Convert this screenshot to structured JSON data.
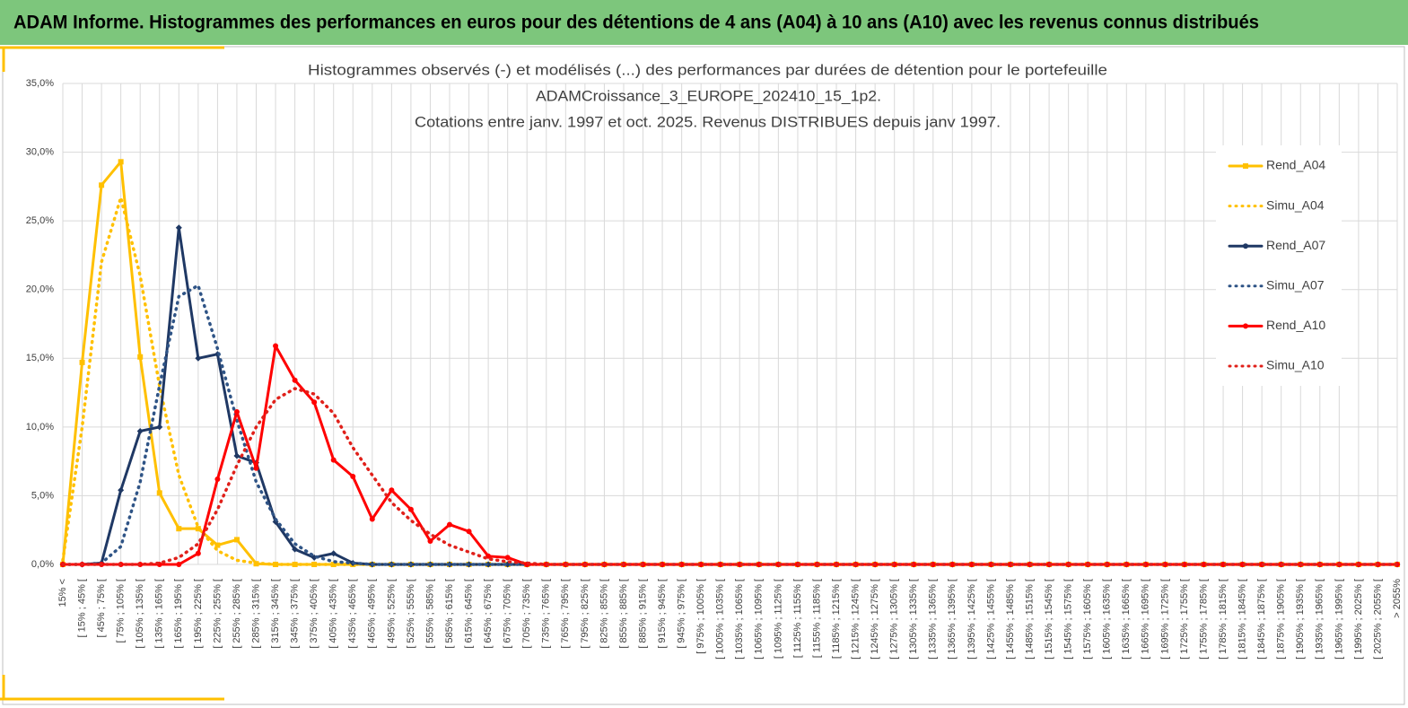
{
  "header": {
    "title": "ADAM Informe. Histogrammes des performances en euros pour des détentions de 4 ans (A04) à 10 ans (A10) avec les revenus connus distribués"
  },
  "chart_data": {
    "type": "line",
    "title": [
      "Histogrammes observés (-) et modélisés (...) des performances  par durées de détention pour le portefeuille",
      "ADAMCroissance_3_EUROPE_202410_15_1p2.",
      "Cotations entre janv. 1997 et oct. 2025. Revenus DISTRIBUES depuis janv 1997."
    ],
    "categories": [
      "15% <",
      "[ 15% ; 45% [",
      "[ 45% ; 75% [",
      "[ 75% ; 105% [",
      "[ 105% ; 135% [",
      "[ 135% ; 165% [",
      "[ 165% ; 195% [",
      "[ 195% ; 225% [",
      "[ 225% ; 255% [",
      "[ 255% ; 285% [",
      "[ 285% ; 315% [",
      "[ 315% ; 345% [",
      "[ 345% ; 375% [",
      "[ 375% ; 405% [",
      "[ 405% ; 435% [",
      "[ 435% ; 465% [",
      "[ 465% ; 495% [",
      "[ 495% ; 525% [",
      "[ 525% ; 555% [",
      "[ 555% ; 585% [",
      "[ 585% ; 615% [",
      "[ 615% ; 645% [",
      "[ 645% ; 675% [",
      "[ 675% ; 705% [",
      "[ 705% ; 735% [",
      "[ 735% ; 765% [",
      "[ 765% ; 795% [",
      "[ 795% ; 825% [",
      "[ 825% ; 855% [",
      "[ 855% ; 885% [",
      "[ 885% ; 915% [",
      "[ 915% ; 945% [",
      "[ 945% ; 975% [",
      "[ 975% ; 1005% [",
      "[ 1005% ; 1035% [",
      "[ 1035% ; 1065% [",
      "[ 1065% ; 1095% [",
      "[ 1095% ; 1125% [",
      "[ 1125% ; 1155% [",
      "[ 1155% ; 1185% [",
      "[ 1185% ; 1215% [",
      "[ 1215% ; 1245% [",
      "[ 1245% ; 1275% [",
      "[ 1275% ; 1305% [",
      "[ 1305% ; 1335% [",
      "[ 1335% ; 1365% [",
      "[ 1365% ; 1395% [",
      "[ 1395% ; 1425% [",
      "[ 1425% ; 1455% [",
      "[ 1455% ; 1485% [",
      "[ 1485% ; 1515% [",
      "[ 1515% ; 1545% [",
      "[ 1545% ; 1575% [",
      "[ 1575% ; 1605% [",
      "[ 1605% ; 1635% [",
      "[ 1635% ; 1665% [",
      "[ 1665% ; 1695% [",
      "[ 1695% ; 1725% [",
      "[ 1725% ; 1755% [",
      "[ 1755% ; 1785% [",
      "[ 1785% ; 1815% [",
      "[ 1815% ; 1845% [",
      "[ 1845% ; 1875% [",
      "[ 1875% ; 1905% [",
      "[ 1905% ; 1935% [",
      "[ 1935% ; 1965% [",
      "[ 1965% ; 1995% [",
      "[ 1995% ; 2025% [",
      "[ 2025% ; 2055% [",
      "> 2055%"
    ],
    "series": [
      {
        "name": "Rend_A04",
        "color": "#ffc000",
        "line_style": "solid",
        "marker": "square",
        "values": [
          0,
          14.7,
          27.6,
          29.3,
          15.1,
          5.2,
          2.6,
          2.6,
          1.4,
          1.8,
          0.05,
          0,
          0,
          0,
          0,
          0,
          0,
          0,
          0,
          0,
          0,
          0,
          0,
          0,
          0,
          0,
          0,
          0,
          0,
          0,
          0,
          0,
          0,
          0,
          0,
          0,
          0,
          0,
          0,
          0,
          0,
          0,
          0,
          0,
          0,
          0,
          0,
          0,
          0,
          0,
          0,
          0,
          0,
          0,
          0,
          0,
          0,
          0,
          0,
          0,
          0,
          0,
          0,
          0,
          0,
          0,
          0,
          0,
          0,
          0
        ]
      },
      {
        "name": "Simu_A04",
        "color": "#ffc000",
        "line_style": "dotted",
        "values": [
          0.3,
          10,
          22,
          26.7,
          21,
          13,
          6.5,
          2.7,
          1,
          0.3,
          0.1,
          0,
          0,
          0,
          0,
          0,
          0,
          0,
          0,
          0,
          0,
          0,
          0,
          0,
          0,
          0,
          0,
          0,
          0,
          0,
          0,
          0,
          0,
          0,
          0,
          0,
          0,
          0,
          0,
          0,
          0,
          0,
          0,
          0,
          0,
          0,
          0,
          0,
          0,
          0,
          0,
          0,
          0,
          0,
          0,
          0,
          0,
          0,
          0,
          0,
          0,
          0,
          0,
          0,
          0,
          0,
          0,
          0,
          0,
          0
        ]
      },
      {
        "name": "Rend_A07",
        "color": "#1f3864",
        "line_style": "solid",
        "marker": "diamond",
        "values": [
          0,
          0,
          0.1,
          5.4,
          9.7,
          10,
          24.5,
          15,
          15.3,
          7.9,
          7.4,
          3.1,
          1.1,
          0.5,
          0.8,
          0.1,
          0,
          0,
          0,
          0,
          0,
          0,
          0,
          0,
          0,
          0,
          0,
          0,
          0,
          0,
          0,
          0,
          0,
          0,
          0,
          0,
          0,
          0,
          0,
          0,
          0,
          0,
          0,
          0,
          0,
          0,
          0,
          0,
          0,
          0,
          0,
          0,
          0,
          0,
          0,
          0,
          0,
          0,
          0,
          0,
          0,
          0,
          0,
          0,
          0,
          0,
          0,
          0,
          0,
          0
        ]
      },
      {
        "name": "Simu_A07",
        "color": "#2f5486",
        "line_style": "dotted",
        "values": [
          0,
          0,
          0.1,
          1.3,
          6,
          13,
          19.5,
          20.3,
          15.7,
          10.5,
          6,
          3.3,
          1.5,
          0.6,
          0.2,
          0.1,
          0,
          0,
          0,
          0,
          0,
          0,
          0,
          0,
          0,
          0,
          0,
          0,
          0,
          0,
          0,
          0,
          0,
          0,
          0,
          0,
          0,
          0,
          0,
          0,
          0,
          0,
          0,
          0,
          0,
          0,
          0,
          0,
          0,
          0,
          0,
          0,
          0,
          0,
          0,
          0,
          0,
          0,
          0,
          0,
          0,
          0,
          0,
          0,
          0,
          0,
          0,
          0,
          0,
          0
        ]
      },
      {
        "name": "Rend_A10",
        "color": "#ff0000",
        "line_style": "solid",
        "marker": "circle",
        "values": [
          0,
          0,
          0,
          0,
          0,
          0,
          0,
          0.8,
          6.2,
          11.1,
          7,
          15.9,
          13.4,
          11.8,
          7.6,
          6.4,
          3.3,
          5.4,
          4,
          1.7,
          2.9,
          2.4,
          0.6,
          0.5,
          0,
          0,
          0,
          0,
          0,
          0,
          0,
          0,
          0,
          0,
          0,
          0,
          0,
          0,
          0,
          0,
          0,
          0,
          0,
          0,
          0,
          0,
          0,
          0,
          0,
          0,
          0,
          0,
          0,
          0,
          0,
          0,
          0,
          0,
          0,
          0,
          0,
          0,
          0,
          0,
          0,
          0,
          0,
          0,
          0,
          0
        ]
      },
      {
        "name": "Simu_A10",
        "color": "#e0201a",
        "line_style": "dotted",
        "values": [
          0,
          0,
          0,
          0,
          0,
          0.1,
          0.5,
          1.5,
          4,
          7.2,
          10,
          12,
          12.8,
          12.4,
          11,
          8.5,
          6.5,
          4.5,
          3.2,
          2.2,
          1.4,
          0.9,
          0.4,
          0.2,
          0.1,
          0,
          0,
          0,
          0,
          0,
          0,
          0,
          0,
          0,
          0,
          0,
          0,
          0,
          0,
          0,
          0,
          0,
          0,
          0,
          0,
          0,
          0,
          0,
          0,
          0,
          0,
          0,
          0,
          0,
          0,
          0,
          0,
          0,
          0,
          0,
          0,
          0,
          0,
          0,
          0,
          0,
          0,
          0,
          0,
          0
        ]
      }
    ],
    "ylim": [
      0,
      35
    ],
    "yticks": [
      {
        "value": 0,
        "label": "0,0%"
      },
      {
        "value": 5,
        "label": "5,0%"
      },
      {
        "value": 10,
        "label": "10,0%"
      },
      {
        "value": 15,
        "label": "15,0%"
      },
      {
        "value": 20,
        "label": "20,0%"
      },
      {
        "value": 25,
        "label": "25,0%"
      },
      {
        "value": 30,
        "label": "30,0%"
      },
      {
        "value": 35,
        "label": "35,0%"
      }
    ],
    "grid": true,
    "legend": "right"
  }
}
